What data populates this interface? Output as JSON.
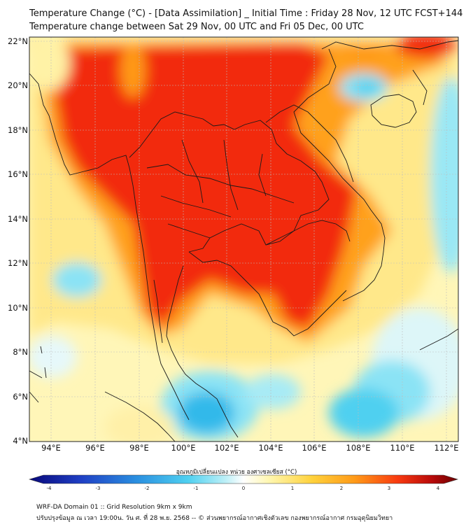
{
  "title": "Temperature Change (°C) - [Data Assimilation] _ Initial Time : Friday 28 Nov, 12 UTC FCST+144",
  "subtitle": "Temperature change between Sat 29 Nov, 00 UTC and Fri 05 Dec, 00 UTC",
  "lat_labels": [
    "22°N",
    "20°N",
    "18°N",
    "16°N",
    "14°N",
    "12°N",
    "10°N",
    "8°N",
    "6°N",
    "4°N"
  ],
  "lon_labels": [
    "94°E",
    "96°E",
    "98°E",
    "100°E",
    "102°E",
    "104°E",
    "106°E",
    "108°E",
    "110°E",
    "112°E"
  ],
  "colorbar": {
    "label": "อุณหภูมิเปลี่ยนแปลง หน่วย องศาเซลเซียส (°C)",
    "ticks": [
      "-4",
      "-3",
      "-2",
      "-1",
      "0",
      "1",
      "2",
      "3",
      "4"
    ],
    "colors": [
      "#08087a",
      "#1f3fc4",
      "#2a8fe0",
      "#4fd0f0",
      "#bff0f7",
      "#ffffff",
      "#fff7b0",
      "#ffd23c",
      "#ff9a18",
      "#f83a10",
      "#b80a0a",
      "#6b0000"
    ]
  },
  "footer": {
    "line1": "WRF-DA Domain 01 :: Grid Resolution 9km x 9km",
    "line2": "ปรับปรุงข้อมูล ณ เวลา 19:00น. วัน ศ. ที่ 28 พ.ย. 2568 -- © ส่วนพยากรณ์อากาศเชิงตัวเลข กองพยากรณ์อากาศ กรมอุตุนิยมวิทยา"
  }
}
